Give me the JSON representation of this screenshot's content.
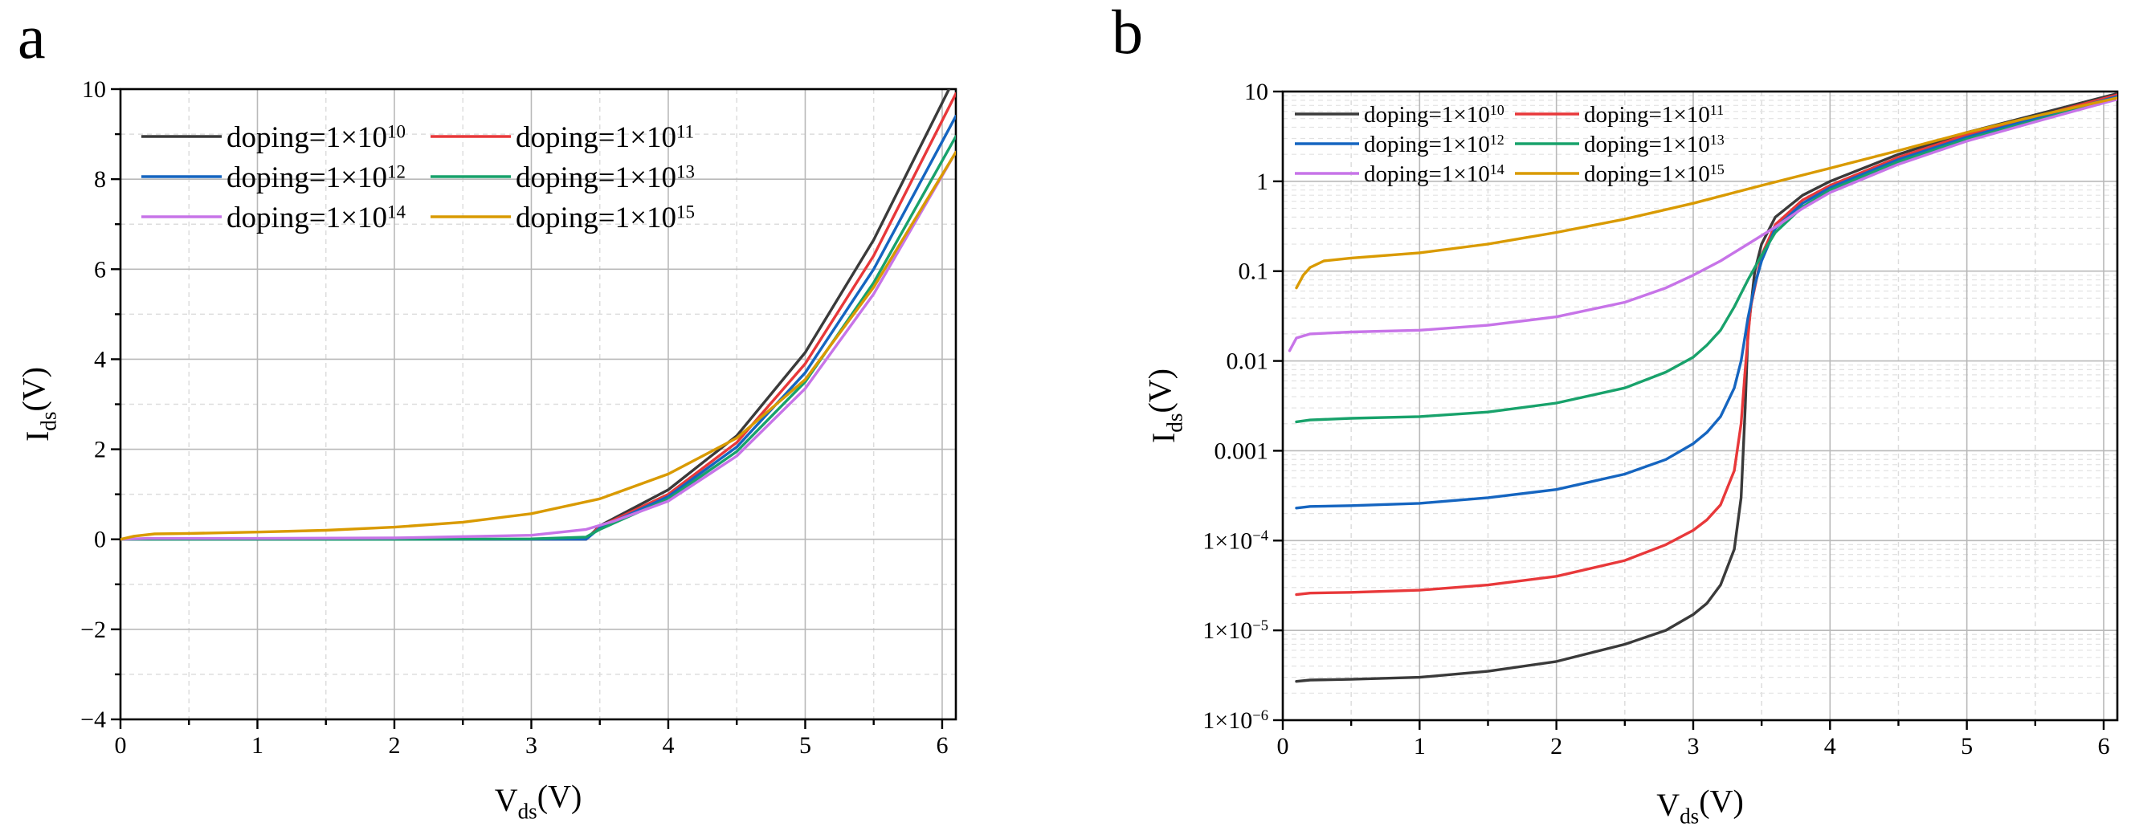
{
  "series_colors": [
    "#3a3a3a",
    "#e8383a",
    "#1565c0",
    "#18a26b",
    "#c774e8",
    "#d99a00"
  ],
  "chart_data": [
    {
      "panel": "a",
      "type": "line",
      "xlabel": {
        "main": "V",
        "sub": "ds",
        "tail": "(V)"
      },
      "ylabel": {
        "main": "I",
        "sub": "ds",
        "tail": "(V)"
      },
      "xlim": [
        0,
        6.1
      ],
      "ylim": [
        -4,
        10
      ],
      "xticks": [
        "0",
        "1",
        "2",
        "3",
        "4",
        "5",
        "6"
      ],
      "yticks": [
        "−4",
        "−2",
        "0",
        "2",
        "4",
        "6",
        "8",
        "10"
      ],
      "yscale": "linear",
      "grid": true,
      "legend_position": "top-left",
      "series": [
        {
          "name": "doping=1×10",
          "exp": "10",
          "points": [
            [
              0,
              0
            ],
            [
              1,
              0
            ],
            [
              2,
              0
            ],
            [
              3,
              0
            ],
            [
              3.4,
              0
            ],
            [
              3.5,
              0.3
            ],
            [
              4,
              1.1
            ],
            [
              4.5,
              2.3
            ],
            [
              5,
              4.15
            ],
            [
              5.5,
              6.65
            ],
            [
              6.05,
              10.0
            ]
          ]
        },
        {
          "name": "doping=1×10",
          "exp": "11",
          "points": [
            [
              0,
              0
            ],
            [
              1,
              0
            ],
            [
              2,
              0
            ],
            [
              3,
              0
            ],
            [
              3.4,
              0
            ],
            [
              3.5,
              0.28
            ],
            [
              4,
              1.0
            ],
            [
              4.5,
              2.15
            ],
            [
              5,
              3.9
            ],
            [
              5.5,
              6.3
            ],
            [
              6.1,
              9.9
            ]
          ]
        },
        {
          "name": "doping=1×10",
          "exp": "12",
          "points": [
            [
              0,
              0
            ],
            [
              1,
              0
            ],
            [
              2,
              0
            ],
            [
              3,
              0
            ],
            [
              3.4,
              0
            ],
            [
              3.5,
              0.25
            ],
            [
              4,
              0.95
            ],
            [
              4.5,
              2.05
            ],
            [
              5,
              3.7
            ],
            [
              5.5,
              6.0
            ],
            [
              6.1,
              9.4
            ]
          ]
        },
        {
          "name": "doping=1×10",
          "exp": "13",
          "points": [
            [
              0,
              0
            ],
            [
              1,
              0
            ],
            [
              2,
              0
            ],
            [
              3,
              0.01
            ],
            [
              3.4,
              0.05
            ],
            [
              3.5,
              0.22
            ],
            [
              4,
              0.9
            ],
            [
              4.5,
              1.95
            ],
            [
              5,
              3.5
            ],
            [
              5.5,
              5.7
            ],
            [
              6.1,
              8.95
            ]
          ]
        },
        {
          "name": "doping=1×10",
          "exp": "14",
          "points": [
            [
              0,
              0
            ],
            [
              0.2,
              0.02
            ],
            [
              1,
              0.02
            ],
            [
              2,
              0.03
            ],
            [
              3,
              0.09
            ],
            [
              3.4,
              0.22
            ],
            [
              3.6,
              0.4
            ],
            [
              4,
              0.85
            ],
            [
              4.5,
              1.85
            ],
            [
              5,
              3.35
            ],
            [
              5.5,
              5.45
            ],
            [
              6.1,
              8.6
            ]
          ]
        },
        {
          "name": "doping=1×10",
          "exp": "15",
          "points": [
            [
              0,
              0
            ],
            [
              0.1,
              0.07
            ],
            [
              0.25,
              0.12
            ],
            [
              0.5,
              0.13
            ],
            [
              1,
              0.16
            ],
            [
              1.5,
              0.2
            ],
            [
              2,
              0.27
            ],
            [
              2.5,
              0.38
            ],
            [
              3,
              0.57
            ],
            [
              3.5,
              0.9
            ],
            [
              4,
              1.45
            ],
            [
              4.5,
              2.25
            ],
            [
              5,
              3.55
            ],
            [
              5.5,
              5.6
            ],
            [
              6.1,
              8.6
            ]
          ]
        }
      ]
    },
    {
      "panel": "b",
      "type": "line",
      "xlabel": {
        "main": "V",
        "sub": "ds",
        "tail": "(V)"
      },
      "ylabel": {
        "main": "I",
        "sub": "ds",
        "tail": "(V)"
      },
      "xlim": [
        0,
        6.1
      ],
      "ylim": [
        1e-06,
        10
      ],
      "yscale": "log",
      "xticks": [
        "0",
        "1",
        "2",
        "3",
        "4",
        "5",
        "6"
      ],
      "yticks": [
        {
          "text": "1×10",
          "exp": "−6"
        },
        {
          "text": "1×10",
          "exp": "−5"
        },
        {
          "text": "1×10",
          "exp": "−4"
        },
        {
          "text": "0.001",
          "exp": ""
        },
        {
          "text": "0.01",
          "exp": ""
        },
        {
          "text": "0.1",
          "exp": ""
        },
        {
          "text": "1",
          "exp": ""
        },
        {
          "text": "10",
          "exp": ""
        }
      ],
      "grid": true,
      "legend_position": "top-left",
      "series": [
        {
          "name": "doping=1×10",
          "exp": "10",
          "points": [
            [
              0.1,
              2.7e-06
            ],
            [
              0.2,
              2.8e-06
            ],
            [
              0.5,
              2.85e-06
            ],
            [
              1,
              3e-06
            ],
            [
              1.5,
              3.5e-06
            ],
            [
              2,
              4.5e-06
            ],
            [
              2.5,
              7e-06
            ],
            [
              2.8,
              1e-05
            ],
            [
              3,
              1.5e-05
            ],
            [
              3.1,
              2e-05
            ],
            [
              3.2,
              3.2e-05
            ],
            [
              3.3,
              8e-05
            ],
            [
              3.35,
              0.0003
            ],
            [
              3.38,
              0.003
            ],
            [
              3.4,
              0.02
            ],
            [
              3.45,
              0.1
            ],
            [
              3.5,
              0.2
            ],
            [
              3.6,
              0.4
            ],
            [
              3.8,
              0.7
            ],
            [
              4,
              1.0
            ],
            [
              4.5,
              2.0
            ],
            [
              5,
              3.5
            ],
            [
              5.5,
              5.5
            ],
            [
              6.1,
              9.5
            ]
          ]
        },
        {
          "name": "doping=1×10",
          "exp": "11",
          "points": [
            [
              0.1,
              2.5e-05
            ],
            [
              0.2,
              2.6e-05
            ],
            [
              0.5,
              2.65e-05
            ],
            [
              1,
              2.8e-05
            ],
            [
              1.5,
              3.2e-05
            ],
            [
              2,
              4e-05
            ],
            [
              2.5,
              6e-05
            ],
            [
              2.8,
              9e-05
            ],
            [
              3,
              0.00013
            ],
            [
              3.1,
              0.00017
            ],
            [
              3.2,
              0.00025
            ],
            [
              3.3,
              0.0006
            ],
            [
              3.35,
              0.002
            ],
            [
              3.38,
              0.008
            ],
            [
              3.42,
              0.04
            ],
            [
              3.5,
              0.15
            ],
            [
              3.6,
              0.33
            ],
            [
              3.8,
              0.62
            ],
            [
              4,
              0.9
            ],
            [
              4.5,
              1.85
            ],
            [
              5,
              3.3
            ],
            [
              5.5,
              5.2
            ],
            [
              6.1,
              9.2
            ]
          ]
        },
        {
          "name": "doping=1×10",
          "exp": "12",
          "points": [
            [
              0.1,
              0.00023
            ],
            [
              0.2,
              0.00024
            ],
            [
              0.5,
              0.000245
            ],
            [
              1,
              0.00026
            ],
            [
              1.5,
              0.0003
            ],
            [
              2,
              0.00037
            ],
            [
              2.5,
              0.00055
            ],
            [
              2.8,
              0.0008
            ],
            [
              3,
              0.0012
            ],
            [
              3.1,
              0.0016
            ],
            [
              3.2,
              0.0024
            ],
            [
              3.3,
              0.005
            ],
            [
              3.35,
              0.01
            ],
            [
              3.4,
              0.03
            ],
            [
              3.45,
              0.07
            ],
            [
              3.5,
              0.13
            ],
            [
              3.6,
              0.3
            ],
            [
              3.8,
              0.57
            ],
            [
              4,
              0.85
            ],
            [
              4.5,
              1.75
            ],
            [
              5,
              3.1
            ],
            [
              5.5,
              5.0
            ],
            [
              6.1,
              8.8
            ]
          ]
        },
        {
          "name": "doping=1×10",
          "exp": "13",
          "points": [
            [
              0.1,
              0.0021
            ],
            [
              0.2,
              0.0022
            ],
            [
              0.5,
              0.0023
            ],
            [
              1,
              0.0024
            ],
            [
              1.5,
              0.0027
            ],
            [
              2,
              0.0034
            ],
            [
              2.5,
              0.005
            ],
            [
              2.8,
              0.0075
            ],
            [
              3,
              0.011
            ],
            [
              3.1,
              0.015
            ],
            [
              3.2,
              0.022
            ],
            [
              3.3,
              0.04
            ],
            [
              3.4,
              0.08
            ],
            [
              3.5,
              0.15
            ],
            [
              3.6,
              0.27
            ],
            [
              3.8,
              0.52
            ],
            [
              4,
              0.8
            ],
            [
              4.5,
              1.65
            ],
            [
              5,
              2.95
            ],
            [
              5.5,
              4.75
            ],
            [
              6.1,
              8.5
            ]
          ]
        },
        {
          "name": "doping=1×10",
          "exp": "14",
          "points": [
            [
              0.05,
              0.013
            ],
            [
              0.1,
              0.018
            ],
            [
              0.2,
              0.02
            ],
            [
              0.5,
              0.021
            ],
            [
              1,
              0.022
            ],
            [
              1.5,
              0.025
            ],
            [
              2,
              0.031
            ],
            [
              2.5,
              0.045
            ],
            [
              2.8,
              0.065
            ],
            [
              3,
              0.09
            ],
            [
              3.2,
              0.13
            ],
            [
              3.4,
              0.2
            ],
            [
              3.6,
              0.31
            ],
            [
              3.8,
              0.5
            ],
            [
              4,
              0.75
            ],
            [
              4.5,
              1.55
            ],
            [
              5,
              2.8
            ],
            [
              5.5,
              4.6
            ],
            [
              6.1,
              8.2
            ]
          ]
        },
        {
          "name": "doping=1×10",
          "exp": "15",
          "points": [
            [
              0.1,
              0.065
            ],
            [
              0.15,
              0.09
            ],
            [
              0.2,
              0.11
            ],
            [
              0.3,
              0.13
            ],
            [
              0.5,
              0.14
            ],
            [
              1,
              0.16
            ],
            [
              1.5,
              0.2
            ],
            [
              2,
              0.27
            ],
            [
              2.5,
              0.38
            ],
            [
              3,
              0.57
            ],
            [
              3.5,
              0.9
            ],
            [
              4,
              1.4
            ],
            [
              4.5,
              2.2
            ],
            [
              5,
              3.5
            ],
            [
              5.5,
              5.3
            ],
            [
              6.1,
              8.5
            ]
          ]
        }
      ]
    }
  ]
}
